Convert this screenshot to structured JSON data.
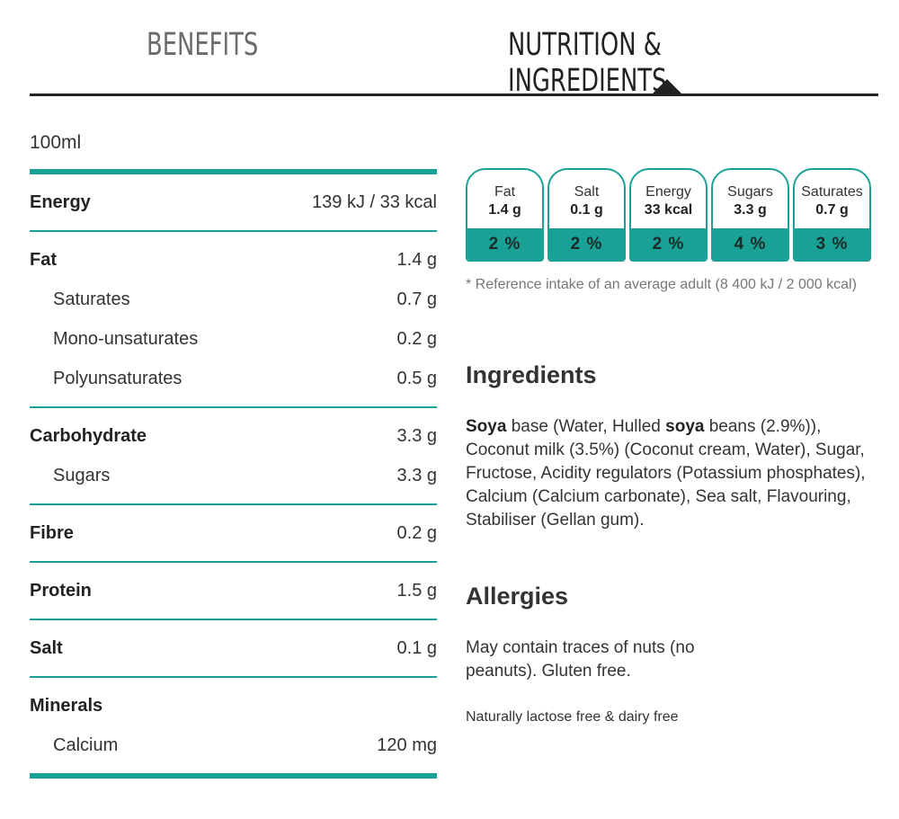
{
  "tabs": [
    {
      "label": "BENEFITS",
      "active": false
    },
    {
      "label": "NUTRITION & INGREDIENTS",
      "active": true
    }
  ],
  "nutrition": {
    "serving": "100ml",
    "groups": [
      {
        "rows": [
          {
            "label": "Energy",
            "value": "139 kJ / 33 kcal",
            "type": "main"
          }
        ]
      },
      {
        "rows": [
          {
            "label": "Fat",
            "value": "1.4 g",
            "type": "main"
          },
          {
            "label": "Saturates",
            "value": "0.7 g",
            "type": "sub"
          },
          {
            "label": "Mono-unsaturates",
            "value": "0.2 g",
            "type": "sub"
          },
          {
            "label": "Polyunsaturates",
            "value": "0.5 g",
            "type": "sub"
          }
        ]
      },
      {
        "rows": [
          {
            "label": "Carbohydrate",
            "value": "3.3 g",
            "type": "main"
          },
          {
            "label": "Sugars",
            "value": "3.3 g",
            "type": "sub"
          }
        ]
      },
      {
        "rows": [
          {
            "label": "Fibre",
            "value": "0.2 g",
            "type": "main"
          }
        ]
      },
      {
        "rows": [
          {
            "label": "Protein",
            "value": "1.5 g",
            "type": "main"
          }
        ]
      },
      {
        "rows": [
          {
            "label": "Salt",
            "value": "0.1 g",
            "type": "main"
          }
        ]
      },
      {
        "rows": [
          {
            "label": "Minerals",
            "value": "",
            "type": "main"
          },
          {
            "label": "Calcium",
            "value": "120 mg",
            "type": "sub"
          }
        ]
      }
    ]
  },
  "gda": [
    {
      "name": "Fat",
      "amount": "1.4 g",
      "percent": "2 %"
    },
    {
      "name": "Salt",
      "amount": "0.1 g",
      "percent": "2 %"
    },
    {
      "name": "Energy",
      "amount": "33 kcal",
      "percent": "2 %"
    },
    {
      "name": "Sugars",
      "amount": "3.3 g",
      "percent": "4 %"
    },
    {
      "name": "Saturates",
      "amount": "0.7 g",
      "percent": "3 %"
    }
  ],
  "reference_note": "* Reference intake of an average adult (8 400 kJ / 2 000 kcal)",
  "ingredients": {
    "heading": "Ingredients",
    "parts": [
      {
        "text": "Soya",
        "bold": true
      },
      {
        "text": " base (Water, Hulled ",
        "bold": false
      },
      {
        "text": "soya",
        "bold": true
      },
      {
        "text": " beans (2.9%)), Coconut milk (3.5%) (Coconut cream, Water), Sugar, Fructose, Acidity regulators (Potassium phosphates), Calcium (Calcium carbonate), Sea salt, Flavouring, Stabiliser (Gellan gum).",
        "bold": false
      }
    ]
  },
  "allergies": {
    "heading": "Allergies",
    "text": "May contain traces of nuts (no peanuts). Gluten free."
  },
  "lactose_note": "Naturally lactose free & dairy free",
  "colors": {
    "accent": "#1aa195",
    "text": "#333333"
  }
}
